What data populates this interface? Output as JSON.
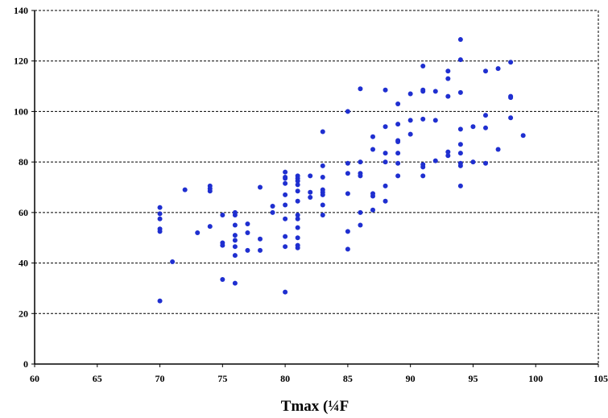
{
  "chart_data": {
    "type": "scatter",
    "title": "",
    "xlabel": "Tmax (¼F",
    "ylabel": "",
    "xlim": [
      60,
      105
    ],
    "ylim": [
      0,
      140
    ],
    "x_ticks": [
      60,
      65,
      70,
      75,
      80,
      85,
      90,
      95,
      100,
      105
    ],
    "y_ticks": [
      0,
      20,
      40,
      60,
      80,
      100,
      120,
      140
    ],
    "grid": "horizontal dashed",
    "legend": "none",
    "marker_color": "#1f2fd0",
    "series": [
      {
        "points": [
          [
            70,
            62
          ],
          [
            70,
            59.5
          ],
          [
            70,
            57.5
          ],
          [
            70,
            53.5
          ],
          [
            70,
            52.5
          ],
          [
            70,
            25
          ],
          [
            71,
            40.5
          ],
          [
            72,
            69
          ],
          [
            73,
            52
          ],
          [
            74,
            70.5
          ],
          [
            74,
            69.5
          ],
          [
            74,
            68.5
          ],
          [
            74,
            54.5
          ],
          [
            75,
            59
          ],
          [
            75,
            48
          ],
          [
            75,
            47
          ],
          [
            75,
            33.5
          ],
          [
            76,
            60
          ],
          [
            76,
            59
          ],
          [
            76,
            55
          ],
          [
            76,
            51
          ],
          [
            76,
            49
          ],
          [
            76,
            46.5
          ],
          [
            76,
            43
          ],
          [
            76,
            32
          ],
          [
            77,
            55.5
          ],
          [
            77,
            52
          ],
          [
            77,
            45
          ],
          [
            78,
            70
          ],
          [
            78,
            49.5
          ],
          [
            78,
            45
          ],
          [
            79,
            62.5
          ],
          [
            79,
            60
          ],
          [
            80,
            76
          ],
          [
            80,
            74
          ],
          [
            80,
            73.5
          ],
          [
            80,
            71.5
          ],
          [
            80,
            67
          ],
          [
            80,
            63
          ],
          [
            80,
            57.5
          ],
          [
            80,
            50.5
          ],
          [
            80,
            46.5
          ],
          [
            80,
            28.5
          ],
          [
            81,
            74.5
          ],
          [
            81,
            73.5
          ],
          [
            81,
            72.5
          ],
          [
            81,
            71
          ],
          [
            81,
            68.5
          ],
          [
            81,
            64.5
          ],
          [
            81,
            59
          ],
          [
            81,
            57.5
          ],
          [
            81,
            54
          ],
          [
            81,
            50
          ],
          [
            81,
            47
          ],
          [
            81,
            46
          ],
          [
            82,
            74.5
          ],
          [
            82,
            68
          ],
          [
            82,
            66
          ],
          [
            83,
            92
          ],
          [
            83,
            78.5
          ],
          [
            83,
            74
          ],
          [
            83,
            69
          ],
          [
            83,
            68
          ],
          [
            83,
            67
          ],
          [
            83,
            63
          ],
          [
            83,
            59
          ],
          [
            85,
            100
          ],
          [
            85,
            79.5
          ],
          [
            85,
            75.5
          ],
          [
            85,
            67.5
          ],
          [
            85,
            52.5
          ],
          [
            85,
            45.5
          ],
          [
            86,
            109
          ],
          [
            86,
            80
          ],
          [
            86,
            75.5
          ],
          [
            86,
            74.5
          ],
          [
            86,
            60
          ],
          [
            86,
            55
          ],
          [
            87,
            90
          ],
          [
            87,
            85
          ],
          [
            87,
            67.5
          ],
          [
            87,
            66.5
          ],
          [
            87,
            61
          ],
          [
            88,
            108.5
          ],
          [
            88,
            94
          ],
          [
            88,
            83.5
          ],
          [
            88,
            80
          ],
          [
            88,
            70.5
          ],
          [
            88,
            64.5
          ],
          [
            89,
            103
          ],
          [
            89,
            95
          ],
          [
            89,
            88.5
          ],
          [
            89,
            88
          ],
          [
            89,
            83.5
          ],
          [
            89,
            79.5
          ],
          [
            89,
            74.5
          ],
          [
            90,
            107
          ],
          [
            90,
            96.5
          ],
          [
            90,
            91
          ],
          [
            91,
            118
          ],
          [
            91,
            108.5
          ],
          [
            91,
            108
          ],
          [
            91,
            97
          ],
          [
            91,
            79
          ],
          [
            91,
            78
          ],
          [
            91,
            74.5
          ],
          [
            92,
            108
          ],
          [
            92,
            96.5
          ],
          [
            92,
            80.5
          ],
          [
            93,
            116
          ],
          [
            93,
            113
          ],
          [
            93,
            106
          ],
          [
            93,
            84
          ],
          [
            93,
            82.5
          ],
          [
            94,
            128.5
          ],
          [
            94,
            120.5
          ],
          [
            94,
            107.5
          ],
          [
            94,
            93
          ],
          [
            94,
            87
          ],
          [
            94,
            83.5
          ],
          [
            94,
            79.5
          ],
          [
            94,
            78.5
          ],
          [
            94,
            70.5
          ],
          [
            95,
            94
          ],
          [
            95,
            80
          ],
          [
            96,
            116
          ],
          [
            96,
            98.5
          ],
          [
            96,
            93.5
          ],
          [
            96,
            79.5
          ],
          [
            97,
            117
          ],
          [
            97,
            85
          ],
          [
            98,
            119.5
          ],
          [
            98,
            106
          ],
          [
            98,
            105.5
          ],
          [
            98,
            97.5
          ],
          [
            99,
            90.5
          ]
        ]
      }
    ]
  }
}
